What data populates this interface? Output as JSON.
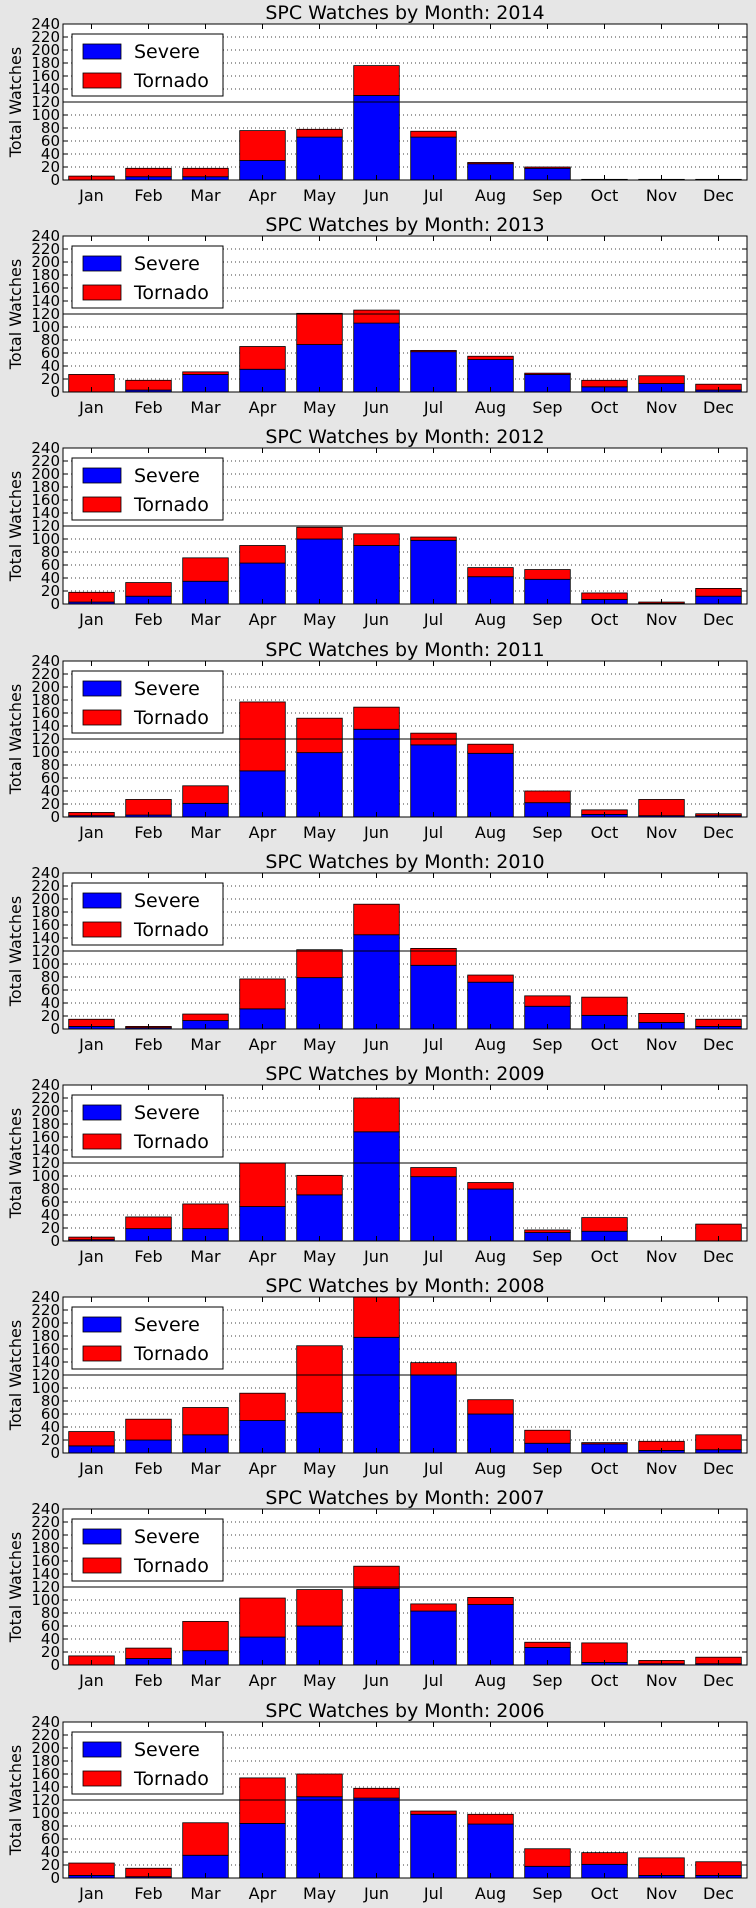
{
  "chart_data": [
    {
      "type": "bar",
      "stacked": true,
      "title": "SPC Watches by Month: 2014",
      "ylabel": "Total Watches",
      "categories": [
        "Jan",
        "Feb",
        "Mar",
        "Apr",
        "May",
        "Jun",
        "Jul",
        "Aug",
        "Sep",
        "Oct",
        "Nov",
        "Dec"
      ],
      "ylim": [
        0,
        240
      ],
      "yticks": [
        0,
        20,
        40,
        60,
        80,
        100,
        120,
        140,
        160,
        180,
        200,
        220,
        240
      ],
      "grid": true,
      "reference_line": 120,
      "legend_position": "upper-left",
      "series": [
        {
          "name": "Severe",
          "color": "#0000ff",
          "values": [
            0,
            5,
            5,
            30,
            66,
            130,
            66,
            25,
            18,
            1,
            1,
            1
          ]
        },
        {
          "name": "Tornado",
          "color": "#ff0000",
          "values": [
            6,
            13,
            13,
            46,
            12,
            46,
            9,
            2,
            2,
            0,
            0,
            0
          ]
        }
      ]
    },
    {
      "type": "bar",
      "stacked": true,
      "title": "SPC Watches by Month: 2013",
      "ylabel": "Total Watches",
      "categories": [
        "Jan",
        "Feb",
        "Mar",
        "Apr",
        "May",
        "Jun",
        "Jul",
        "Aug",
        "Sep",
        "Oct",
        "Nov",
        "Dec"
      ],
      "ylim": [
        0,
        240
      ],
      "yticks": [
        0,
        20,
        40,
        60,
        80,
        100,
        120,
        140,
        160,
        180,
        200,
        220,
        240
      ],
      "grid": true,
      "reference_line": 120,
      "legend_position": "upper-left",
      "series": [
        {
          "name": "Severe",
          "color": "#0000ff",
          "values": [
            0,
            3,
            27,
            35,
            73,
            106,
            62,
            50,
            27,
            8,
            13,
            3
          ]
        },
        {
          "name": "Tornado",
          "color": "#ff0000",
          "values": [
            27,
            15,
            4,
            35,
            48,
            20,
            2,
            5,
            2,
            10,
            12,
            9
          ]
        }
      ]
    },
    {
      "type": "bar",
      "stacked": true,
      "title": "SPC Watches by Month: 2012",
      "ylabel": "Total Watches",
      "categories": [
        "Jan",
        "Feb",
        "Mar",
        "Apr",
        "May",
        "Jun",
        "Jul",
        "Aug",
        "Sep",
        "Oct",
        "Nov",
        "Dec"
      ],
      "ylim": [
        0,
        240
      ],
      "yticks": [
        0,
        20,
        40,
        60,
        80,
        100,
        120,
        140,
        160,
        180,
        200,
        220,
        240
      ],
      "grid": true,
      "reference_line": 120,
      "legend_position": "upper-left",
      "series": [
        {
          "name": "Severe",
          "color": "#0000ff",
          "values": [
            3,
            12,
            35,
            63,
            100,
            90,
            98,
            42,
            38,
            7,
            1,
            12
          ]
        },
        {
          "name": "Tornado",
          "color": "#ff0000",
          "values": [
            15,
            21,
            36,
            27,
            18,
            18,
            5,
            14,
            15,
            10,
            2,
            12
          ]
        }
      ]
    },
    {
      "type": "bar",
      "stacked": true,
      "title": "SPC Watches by Month: 2011",
      "ylabel": "Total Watches",
      "categories": [
        "Jan",
        "Feb",
        "Mar",
        "Apr",
        "May",
        "Jun",
        "Jul",
        "Aug",
        "Sep",
        "Oct",
        "Nov",
        "Dec"
      ],
      "ylim": [
        0,
        240
      ],
      "yticks": [
        0,
        20,
        40,
        60,
        80,
        100,
        120,
        140,
        160,
        180,
        200,
        220,
        240
      ],
      "grid": true,
      "reference_line": 120,
      "legend_position": "upper-left",
      "series": [
        {
          "name": "Severe",
          "color": "#0000ff",
          "values": [
            2,
            3,
            21,
            71,
            99,
            135,
            111,
            98,
            22,
            4,
            2,
            2
          ]
        },
        {
          "name": "Tornado",
          "color": "#ff0000",
          "values": [
            5,
            24,
            27,
            106,
            53,
            34,
            18,
            14,
            18,
            7,
            25,
            3
          ]
        }
      ]
    },
    {
      "type": "bar",
      "stacked": true,
      "title": "SPC Watches by Month: 2010",
      "ylabel": "Total Watches",
      "categories": [
        "Jan",
        "Feb",
        "Mar",
        "Apr",
        "May",
        "Jun",
        "Jul",
        "Aug",
        "Sep",
        "Oct",
        "Nov",
        "Dec"
      ],
      "ylim": [
        0,
        240
      ],
      "yticks": [
        0,
        20,
        40,
        60,
        80,
        100,
        120,
        140,
        160,
        180,
        200,
        220,
        240
      ],
      "grid": true,
      "reference_line": 120,
      "legend_position": "upper-left",
      "series": [
        {
          "name": "Severe",
          "color": "#0000ff",
          "values": [
            4,
            2,
            13,
            31,
            79,
            145,
            98,
            72,
            35,
            21,
            10,
            4
          ]
        },
        {
          "name": "Tornado",
          "color": "#ff0000",
          "values": [
            11,
            2,
            10,
            46,
            43,
            47,
            26,
            11,
            16,
            28,
            14,
            11
          ]
        }
      ]
    },
    {
      "type": "bar",
      "stacked": true,
      "title": "SPC Watches by Month: 2009",
      "ylabel": "Total Watches",
      "categories": [
        "Jan",
        "Feb",
        "Mar",
        "Apr",
        "May",
        "Jun",
        "Jul",
        "Aug",
        "Sep",
        "Oct",
        "Nov",
        "Dec"
      ],
      "ylim": [
        0,
        240
      ],
      "yticks": [
        0,
        20,
        40,
        60,
        80,
        100,
        120,
        140,
        160,
        180,
        200,
        220,
        240
      ],
      "grid": true,
      "reference_line": 120,
      "legend_position": "upper-left",
      "series": [
        {
          "name": "Severe",
          "color": "#0000ff",
          "values": [
            2,
            19,
            19,
            53,
            71,
            168,
            99,
            80,
            13,
            15,
            0,
            0
          ]
        },
        {
          "name": "Tornado",
          "color": "#ff0000",
          "values": [
            4,
            18,
            38,
            67,
            30,
            52,
            14,
            10,
            4,
            21,
            0,
            26
          ]
        }
      ]
    },
    {
      "type": "bar",
      "stacked": true,
      "title": "SPC Watches by Month: 2008",
      "ylabel": "Total Watches",
      "categories": [
        "Jan",
        "Feb",
        "Mar",
        "Apr",
        "May",
        "Jun",
        "Jul",
        "Aug",
        "Sep",
        "Oct",
        "Nov",
        "Dec"
      ],
      "ylim": [
        0,
        240
      ],
      "yticks": [
        0,
        20,
        40,
        60,
        80,
        100,
        120,
        140,
        160,
        180,
        200,
        220,
        240
      ],
      "grid": true,
      "reference_line": 120,
      "legend_position": "upper-left",
      "series": [
        {
          "name": "Severe",
          "color": "#0000ff",
          "values": [
            11,
            20,
            28,
            50,
            62,
            178,
            120,
            60,
            15,
            14,
            4,
            5
          ]
        },
        {
          "name": "Tornado",
          "color": "#ff0000",
          "values": [
            22,
            32,
            42,
            42,
            103,
            62,
            19,
            22,
            20,
            2,
            14,
            23
          ]
        }
      ]
    },
    {
      "type": "bar",
      "stacked": true,
      "title": "SPC Watches by Month: 2007",
      "ylabel": "Total Watches",
      "categories": [
        "Jan",
        "Feb",
        "Mar",
        "Apr",
        "May",
        "Jun",
        "Jul",
        "Aug",
        "Sep",
        "Oct",
        "Nov",
        "Dec"
      ],
      "ylim": [
        0,
        240
      ],
      "yticks": [
        0,
        20,
        40,
        60,
        80,
        100,
        120,
        140,
        160,
        180,
        200,
        220,
        240
      ],
      "grid": true,
      "reference_line": 120,
      "legend_position": "upper-left",
      "series": [
        {
          "name": "Severe",
          "color": "#0000ff",
          "values": [
            0,
            10,
            22,
            43,
            60,
            118,
            83,
            93,
            27,
            4,
            2,
            2
          ]
        },
        {
          "name": "Tornado",
          "color": "#ff0000",
          "values": [
            14,
            16,
            45,
            60,
            56,
            34,
            11,
            11,
            8,
            30,
            5,
            10
          ]
        }
      ]
    },
    {
      "type": "bar",
      "stacked": true,
      "title": "SPC Watches by Month: 2006",
      "ylabel": "Total Watches",
      "categories": [
        "Jan",
        "Feb",
        "Mar",
        "Apr",
        "May",
        "Jun",
        "Jul",
        "Aug",
        "Sep",
        "Oct",
        "Nov",
        "Dec"
      ],
      "ylim": [
        0,
        240
      ],
      "yticks": [
        0,
        20,
        40,
        60,
        80,
        100,
        120,
        140,
        160,
        180,
        200,
        220,
        240
      ],
      "grid": true,
      "reference_line": 120,
      "legend_position": "upper-left",
      "series": [
        {
          "name": "Severe",
          "color": "#0000ff",
          "values": [
            4,
            2,
            35,
            84,
            125,
            123,
            98,
            83,
            18,
            21,
            4,
            4
          ]
        },
        {
          "name": "Tornado",
          "color": "#ff0000",
          "values": [
            19,
            13,
            50,
            70,
            35,
            15,
            5,
            15,
            27,
            18,
            27,
            21
          ]
        }
      ]
    }
  ]
}
